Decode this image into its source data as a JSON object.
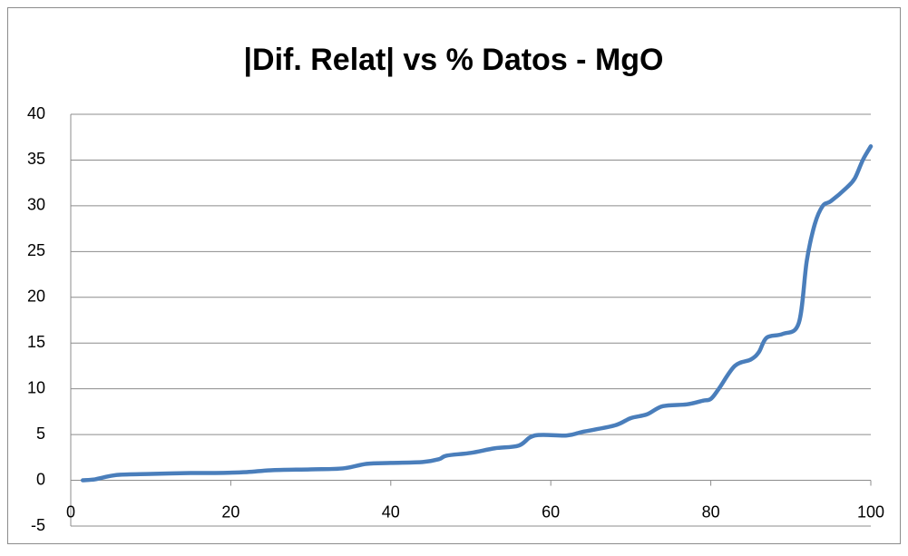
{
  "chart_data": {
    "type": "line",
    "title": "|Dif. Relat| vs % Datos - MgO",
    "x": [
      1.5,
      3,
      4,
      6,
      10,
      15,
      18,
      22,
      25,
      30,
      34,
      37,
      40,
      44,
      46,
      47,
      50,
      53,
      56,
      58,
      62,
      64,
      68,
      70,
      72,
      74,
      77,
      79,
      80,
      81,
      83,
      85,
      86,
      87,
      89,
      91,
      92,
      93,
      94,
      95,
      97,
      98,
      99,
      100
    ],
    "series": [
      {
        "name": "MgO",
        "color": "#4a7ebb",
        "values": [
          0,
          0.1,
          0.3,
          0.6,
          0.7,
          0.8,
          0.8,
          0.9,
          1.1,
          1.2,
          1.3,
          1.8,
          1.9,
          2.0,
          2.3,
          2.7,
          3.0,
          3.5,
          3.8,
          4.9,
          4.9,
          5.3,
          6.0,
          6.8,
          7.2,
          8.1,
          8.3,
          8.7,
          8.9,
          10,
          12.5,
          13.2,
          14,
          15.6,
          16,
          17.2,
          24,
          28,
          30,
          30.5,
          32,
          33,
          35,
          36.5
        ]
      }
    ],
    "xlim": [
      0,
      100
    ],
    "xticks": [
      0,
      20,
      40,
      60,
      80,
      100
    ],
    "ylim": [
      -5,
      40
    ],
    "yticks": [
      -5,
      0,
      5,
      10,
      15,
      20,
      25,
      30,
      35,
      40
    ],
    "grid": true
  }
}
